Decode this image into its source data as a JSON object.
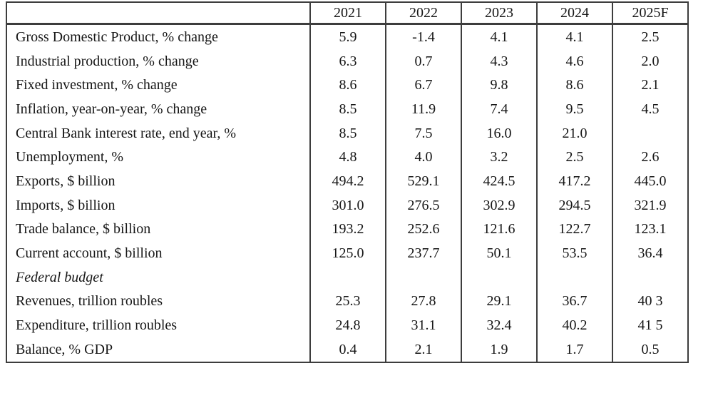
{
  "chart_data": {
    "type": "table",
    "title": "",
    "columns": [
      "",
      "2021",
      "2022",
      "2023",
      "2024",
      "2025F"
    ],
    "rows": [
      {
        "label": "Gross Domestic Product, % change",
        "values": [
          "5.9",
          "-1.4",
          "4.1",
          "4.1",
          "2.5"
        ]
      },
      {
        "label": "Industrial production, % change",
        "values": [
          "6.3",
          "0.7",
          "4.3",
          "4.6",
          "2.0"
        ]
      },
      {
        "label": "Fixed investment, % change",
        "values": [
          "8.6",
          "6.7",
          "9.8",
          "8.6",
          "2.1"
        ]
      },
      {
        "label": "Inflation, year-on-year, % change",
        "values": [
          "8.5",
          "11.9",
          "7.4",
          "9.5",
          "4.5"
        ]
      },
      {
        "label": "Central Bank interest rate, end year, %",
        "values": [
          "8.5",
          "7.5",
          "16.0",
          "21.0",
          ""
        ]
      },
      {
        "label": "Unemployment, %",
        "values": [
          "4.8",
          "4.0",
          "3.2",
          "2.5",
          "2.6"
        ]
      },
      {
        "label": "Exports, $ billion",
        "values": [
          "494.2",
          "529.1",
          "424.5",
          "417.2",
          "445.0"
        ]
      },
      {
        "label": "Imports, $ billion",
        "values": [
          "301.0",
          "276.5",
          "302.9",
          "294.5",
          "321.9"
        ]
      },
      {
        "label": "Trade balance, $ billion",
        "values": [
          "193.2",
          "252.6",
          "121.6",
          "122.7",
          "123.1"
        ]
      },
      {
        "label": "Current account, $ billion",
        "values": [
          "125.0",
          "237.7",
          "50.1",
          "53.5",
          "36.4"
        ]
      },
      {
        "label": "Federal budget",
        "values": [
          "",
          "",
          "",
          "",
          ""
        ]
      },
      {
        "label": "Revenues, trillion roubles",
        "values": [
          "25.3",
          "27.8",
          "29.1",
          "36.7",
          "40 3"
        ]
      },
      {
        "label": "Expenditure, trillion roubles",
        "values": [
          "24.8",
          "31.1",
          "32.4",
          "40.2",
          "41 5"
        ]
      },
      {
        "label": "Balance, % GDP",
        "values": [
          "0.4",
          "2.1",
          "1.9",
          "1.7",
          "0.5"
        ]
      }
    ]
  },
  "colors": {
    "border": "#3d3d3d",
    "text": "#161616",
    "background": "#ffffff"
  }
}
